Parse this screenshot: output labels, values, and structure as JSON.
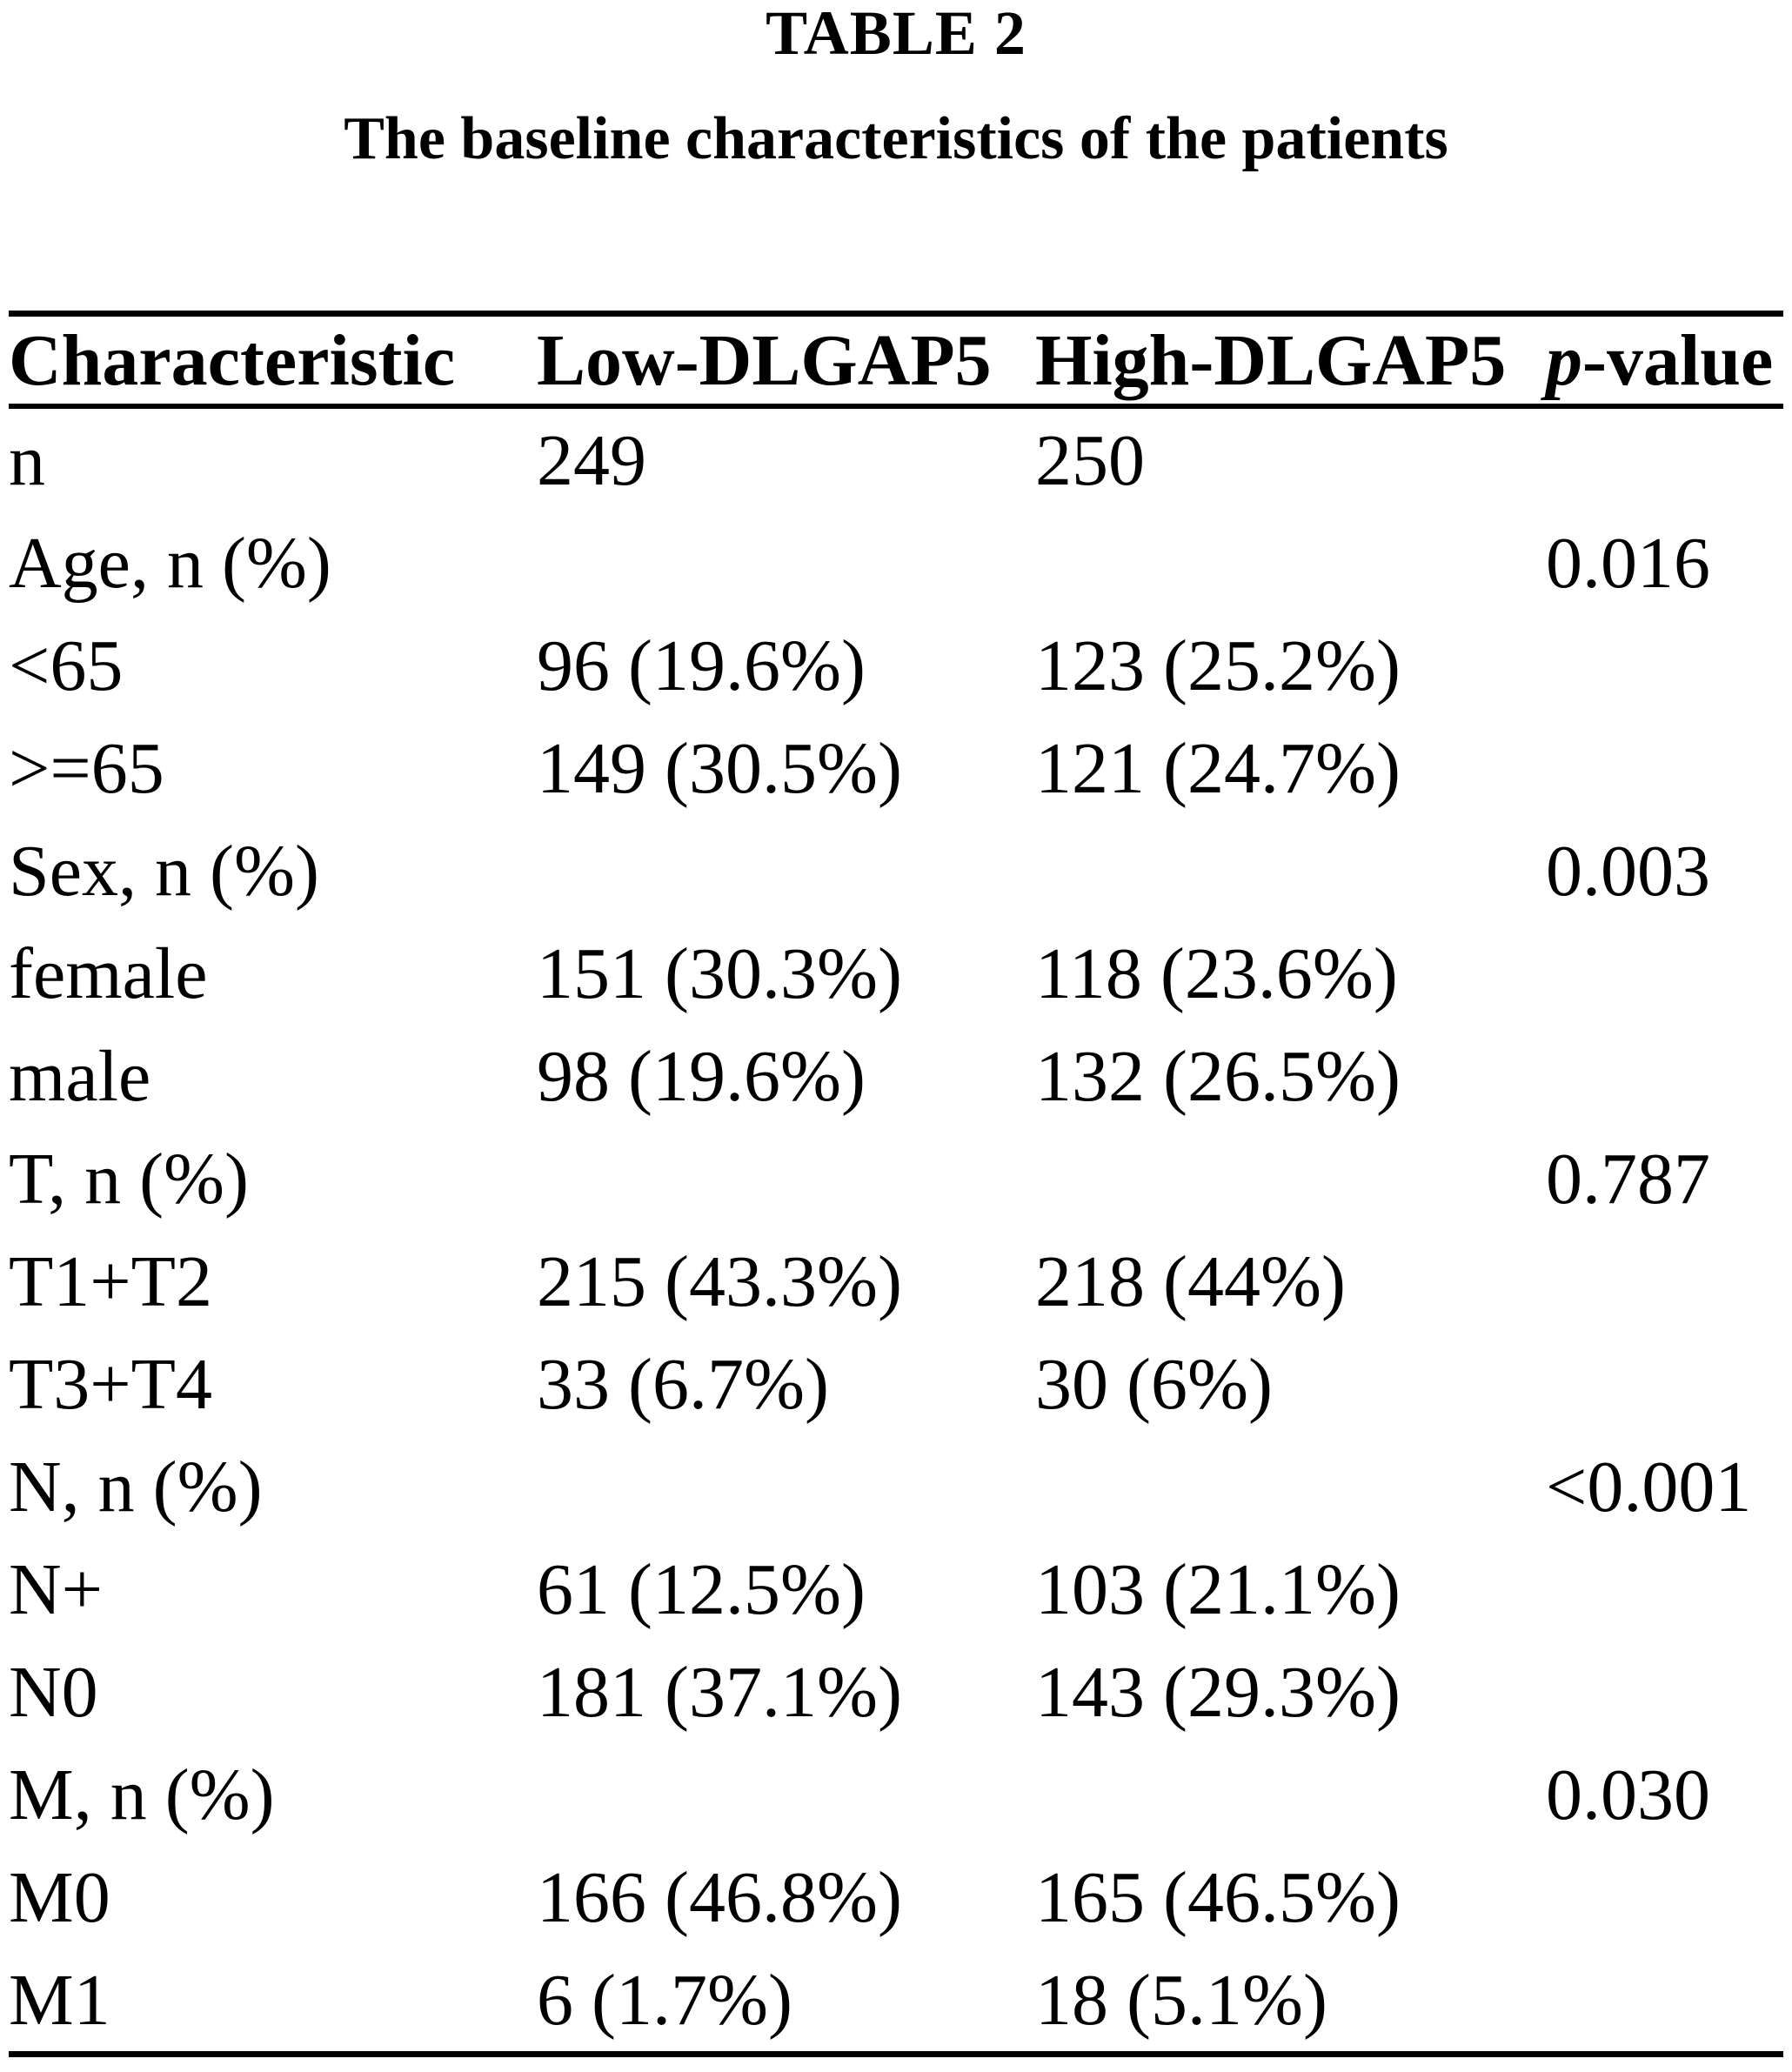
{
  "page": {
    "title": "TABLE 2",
    "subtitle": "The baseline characteristics of the patients"
  },
  "table": {
    "columns": [
      "Characteristic",
      "Low-DLGAP5",
      "High-DLGAP5"
    ],
    "pvalue_header": {
      "prefix": "p",
      "suffix": "-value"
    },
    "rows": [
      {
        "label": "n",
        "bold": true,
        "low": "249",
        "high": "250",
        "p": ""
      },
      {
        "label": "Age, n (%)",
        "bold": true,
        "low": "",
        "high": "",
        "p": "0.016"
      },
      {
        "label": "<65",
        "bold": false,
        "low": "96 (19.6%)",
        "high": "123 (25.2%)",
        "p": ""
      },
      {
        "label": ">=65",
        "bold": false,
        "low": "149 (30.5%)",
        "high": "121 (24.7%)",
        "p": ""
      },
      {
        "label": "Sex, n (%)",
        "bold": true,
        "low": "",
        "high": "",
        "p": "0.003"
      },
      {
        "label": "female",
        "bold": false,
        "low": "151 (30.3%)",
        "high": "118 (23.6%)",
        "p": ""
      },
      {
        "label": "male",
        "bold": false,
        "low": "98 (19.6%)",
        "high": "132 (26.5%)",
        "p": ""
      },
      {
        "label": "T, n (%)",
        "bold": true,
        "low": "",
        "high": "",
        "p": "0.787"
      },
      {
        "label": "T1+T2",
        "bold": false,
        "low": "215 (43.3%)",
        "high": "218 (44%)",
        "p": ""
      },
      {
        "label": "T3+T4",
        "bold": false,
        "low": "33 (6.7%)",
        "high": "30 (6%)",
        "p": ""
      },
      {
        "label": "N, n (%)",
        "bold": true,
        "low": "",
        "high": "",
        "p": "<0.001"
      },
      {
        "label": "N+",
        "bold": false,
        "low": "61 (12.5%)",
        "high": "103 (21.1%)",
        "p": ""
      },
      {
        "label": "N0",
        "bold": false,
        "low": "181 (37.1%)",
        "high": "143 (29.3%)",
        "p": ""
      },
      {
        "label": "M, n (%)",
        "bold": true,
        "low": "",
        "high": "",
        "p": "0.030"
      },
      {
        "label": "M0",
        "bold": false,
        "low": "166 (46.8%)",
        "high": "165 (46.5%)",
        "p": ""
      },
      {
        "label": "M1",
        "bold": false,
        "low": "6 (1.7%)",
        "high": "18 (5.1%)",
        "p": ""
      }
    ]
  }
}
